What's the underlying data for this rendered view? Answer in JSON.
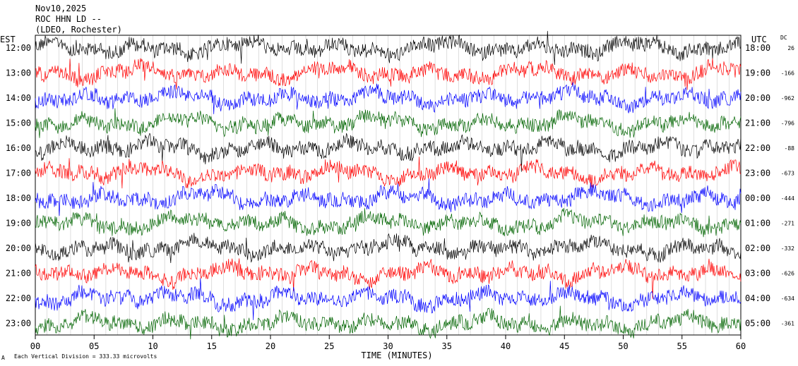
{
  "header": {
    "date": "Nov10,2025",
    "station": "ROC HHN LD --",
    "network": "(LDEO, Rochester)"
  },
  "left_zone": "EST",
  "right_zone": "UTC",
  "dc_header": "DC",
  "xlabel": "TIME (MINUTES)",
  "scale_note": "Each Vertical Division =  333.33 microvolts",
  "corner_mark": "A",
  "colors": {
    "black": "#000000",
    "red": "#ff0000",
    "blue": "#0000ff",
    "green": "#006400"
  },
  "chart_data": {
    "type": "line",
    "title": "Nov10,2025 ROC HHN LD -- (LDEO, Rochester)",
    "xlabel": "TIME (MINUTES)",
    "ylabel": "",
    "xlim": [
      0,
      60
    ],
    "x_ticks": [
      "00",
      "05",
      "10",
      "15",
      "20",
      "25",
      "30",
      "35",
      "40",
      "45",
      "50",
      "55",
      "60"
    ],
    "grid": "vertical lines every minute",
    "color_cycle": [
      "black",
      "red",
      "blue",
      "green"
    ],
    "rows": [
      {
        "est": "12:00",
        "utc": "18:00",
        "dc": "26",
        "color": "black"
      },
      {
        "est": "13:00",
        "utc": "19:00",
        "dc": "-166",
        "color": "red"
      },
      {
        "est": "14:00",
        "utc": "20:00",
        "dc": "-962",
        "color": "blue"
      },
      {
        "est": "15:00",
        "utc": "21:00",
        "dc": "-796",
        "color": "green"
      },
      {
        "est": "16:00",
        "utc": "22:00",
        "dc": "-88",
        "color": "black"
      },
      {
        "est": "17:00",
        "utc": "23:00",
        "dc": "-673",
        "color": "red"
      },
      {
        "est": "18:00",
        "utc": "00:00",
        "dc": "-444",
        "color": "blue"
      },
      {
        "est": "19:00",
        "utc": "01:00",
        "dc": "-271",
        "color": "green"
      },
      {
        "est": "20:00",
        "utc": "02:00",
        "dc": "-332",
        "color": "black"
      },
      {
        "est": "21:00",
        "utc": "03:00",
        "dc": "-626",
        "color": "red"
      },
      {
        "est": "22:00",
        "utc": "04:00",
        "dc": "-634",
        "color": "blue"
      },
      {
        "est": "23:00",
        "utc": "05:00",
        "dc": "-361",
        "color": "green"
      }
    ]
  }
}
